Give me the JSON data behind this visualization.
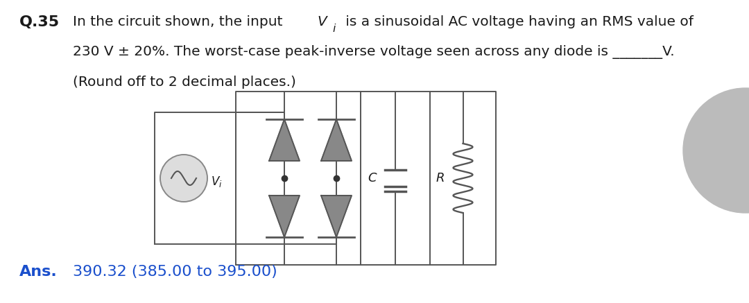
{
  "bg_color": "#ffffff",
  "text_color": "#1a1a1a",
  "ans_color": "#1a4fcc",
  "q_number": "Q.35",
  "question_line2": "230 V ± 20%. The worst-case peak-inverse voltage seen across any diode is _______V.",
  "question_line3": "(Round off to 2 decimal places.)",
  "ans_label": "Ans.",
  "ans_value": "390.32 (385.00 to 395.00)",
  "fig_width": 10.8,
  "fig_height": 4.37,
  "font_size_q": 14.5,
  "font_size_ans": 16.0,
  "font_size_qnum": 16.0,
  "circuit_lw": 1.4,
  "diode_color": "#555555"
}
